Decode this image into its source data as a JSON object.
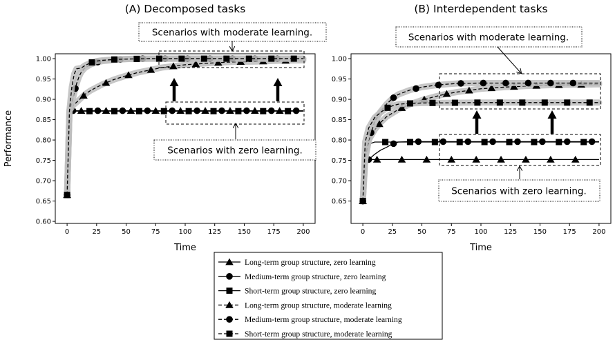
{
  "chart_data": {
    "type": "line",
    "ylabel": "Performance",
    "panels": [
      {
        "title": "(A) Decomposed tasks",
        "xlabel": "Time",
        "xlim": [
          -10,
          210
        ],
        "ylim": [
          0.595,
          1.012
        ],
        "xticks": [
          0,
          25,
          50,
          75,
          100,
          125,
          150,
          175,
          200
        ],
        "yticks": [
          0.6,
          0.65,
          0.7,
          0.75,
          0.8,
          0.85,
          0.9,
          0.95,
          1.0
        ],
        "ytick_labels": [
          "0.60",
          "0.65",
          "0.70",
          "0.75",
          "0.80",
          "0.85",
          "0.90",
          "0.95",
          "1.00"
        ],
        "annotations": [
          {
            "id": "moderate",
            "text": "Scenarios with moderate learning."
          },
          {
            "id": "zero",
            "text": "Scenarios with zero learning."
          }
        ],
        "series": [
          {
            "key": "long-zero",
            "marker": "triangle",
            "dash": false,
            "x": [
              0,
              2,
              200
            ],
            "y": [
              0.665,
              0.872,
              0.872
            ]
          },
          {
            "key": "medium-zero",
            "marker": "circle",
            "dash": false,
            "x": [
              0,
              2,
              200
            ],
            "y": [
              0.665,
              0.872,
              0.872
            ]
          },
          {
            "key": "short-zero",
            "marker": "square",
            "dash": false,
            "x": [
              0,
              2,
              200
            ],
            "y": [
              0.665,
              0.871,
              0.871
            ]
          },
          {
            "key": "long-moderate",
            "marker": "triangle",
            "dash": true,
            "x": [
              0,
              2,
              5,
              10,
              15,
              20,
              30,
              40,
              50,
              60,
              70,
              80,
              100,
              120,
              140,
              160,
              180,
              200
            ],
            "y": [
              0.665,
              0.872,
              0.885,
              0.898,
              0.912,
              0.922,
              0.937,
              0.949,
              0.958,
              0.966,
              0.972,
              0.978,
              0.985,
              0.989,
              0.992,
              0.993,
              0.995,
              0.996
            ]
          },
          {
            "key": "medium-moderate",
            "marker": "circle",
            "dash": true,
            "x": [
              0,
              2,
              4,
              6,
              8,
              10,
              12,
              15,
              20,
              25,
              30,
              40,
              50,
              60,
              80,
              100,
              150,
              200
            ],
            "y": [
              0.665,
              0.872,
              0.89,
              0.915,
              0.938,
              0.955,
              0.967,
              0.977,
              0.986,
              0.991,
              0.994,
              0.997,
              0.999,
              1.0,
              1.0,
              1.0,
              1.0,
              1.0
            ]
          },
          {
            "key": "short-moderate",
            "marker": "square",
            "dash": true,
            "x": [
              0,
              2,
              4,
              6,
              8,
              10,
              12,
              15,
              20,
              25,
              30,
              40,
              50,
              70,
              100,
              150,
              200
            ],
            "y": [
              0.665,
              0.872,
              0.93,
              0.962,
              0.975,
              0.976,
              0.977,
              0.983,
              0.99,
              0.994,
              0.996,
              0.998,
              0.999,
              1.0,
              1.0,
              1.0,
              1.0
            ]
          }
        ]
      },
      {
        "title": "(B) Interdependent tasks",
        "xlabel": "Time",
        "xlim": [
          -10,
          210
        ],
        "ylim": [
          0.595,
          1.012
        ],
        "xticks": [
          0,
          25,
          50,
          75,
          100,
          125,
          150,
          175,
          200
        ],
        "yticks": [
          0.65,
          0.7,
          0.75,
          0.8,
          0.85,
          0.9,
          0.95,
          1.0
        ],
        "ytick_labels": [
          "0.65",
          "0.70",
          "0.75",
          "0.80",
          "0.85",
          "0.90",
          "0.95",
          "1.00"
        ],
        "annotations": [
          {
            "id": "moderate",
            "text": "Scenarios with moderate learning."
          },
          {
            "id": "zero",
            "text": "Scenarios with zero learning."
          }
        ],
        "series": [
          {
            "key": "long-zero",
            "marker": "triangle",
            "dash": false,
            "x": [
              0,
              2,
              200
            ],
            "y": [
              0.65,
              0.752,
              0.752
            ]
          },
          {
            "key": "medium-zero",
            "marker": "circle",
            "dash": false,
            "x": [
              0,
              2,
              5,
              10,
              15,
              20,
              25,
              30,
              40,
              200
            ],
            "y": [
              0.65,
              0.752,
              0.752,
              0.765,
              0.775,
              0.782,
              0.79,
              0.795,
              0.796,
              0.796
            ]
          },
          {
            "key": "short-zero",
            "marker": "square",
            "dash": false,
            "x": [
              0,
              2,
              5,
              10,
              20,
              40,
              200
            ],
            "y": [
              0.65,
              0.77,
              0.79,
              0.795,
              0.795,
              0.795,
              0.795
            ]
          },
          {
            "key": "long-moderate",
            "marker": "triangle",
            "dash": true,
            "x": [
              0,
              2,
              5,
              10,
              15,
              20,
              30,
              40,
              50,
              60,
              70,
              80,
              100,
              120,
              140,
              160,
              180,
              200
            ],
            "y": [
              0.65,
              0.753,
              0.8,
              0.825,
              0.843,
              0.857,
              0.875,
              0.888,
              0.898,
              0.906,
              0.913,
              0.918,
              0.926,
              0.93,
              0.933,
              0.935,
              0.936,
              0.937
            ]
          },
          {
            "key": "medium-moderate",
            "marker": "circle",
            "dash": true,
            "x": [
              0,
              2,
              5,
              10,
              15,
              20,
              25,
              30,
              40,
              50,
              60,
              70,
              80,
              100,
              130,
              160,
              200
            ],
            "y": [
              0.65,
              0.753,
              0.8,
              0.845,
              0.87,
              0.888,
              0.902,
              0.912,
              0.923,
              0.93,
              0.934,
              0.937,
              0.939,
              0.94,
              0.94,
              0.94,
              0.94
            ]
          },
          {
            "key": "short-moderate",
            "marker": "square",
            "dash": true,
            "x": [
              0,
              2,
              5,
              10,
              15,
              20,
              25,
              30,
              40,
              50,
              100,
              200
            ],
            "y": [
              0.65,
              0.795,
              0.83,
              0.855,
              0.868,
              0.878,
              0.884,
              0.888,
              0.89,
              0.891,
              0.892,
              0.892
            ]
          }
        ]
      }
    ],
    "legend": {
      "placement": "bottom-center",
      "entries": [
        {
          "key": "long-zero",
          "marker": "triangle",
          "dash": false,
          "label": "Long-term group structure, zero learning"
        },
        {
          "key": "medium-zero",
          "marker": "circle",
          "dash": false,
          "label": "Medium-term group structure, zero learning"
        },
        {
          "key": "short-zero",
          "marker": "square",
          "dash": false,
          "label": "Short-term group structure, zero learning"
        },
        {
          "key": "long-moderate",
          "marker": "triangle",
          "dash": true,
          "label": "Long-term group structure, moderate learning"
        },
        {
          "key": "medium-moderate",
          "marker": "circle",
          "dash": true,
          "label": "Medium-term group structure, moderate learning"
        },
        {
          "key": "short-moderate",
          "marker": "square",
          "dash": true,
          "label": "Short-term group structure, moderate learning"
        }
      ]
    }
  }
}
